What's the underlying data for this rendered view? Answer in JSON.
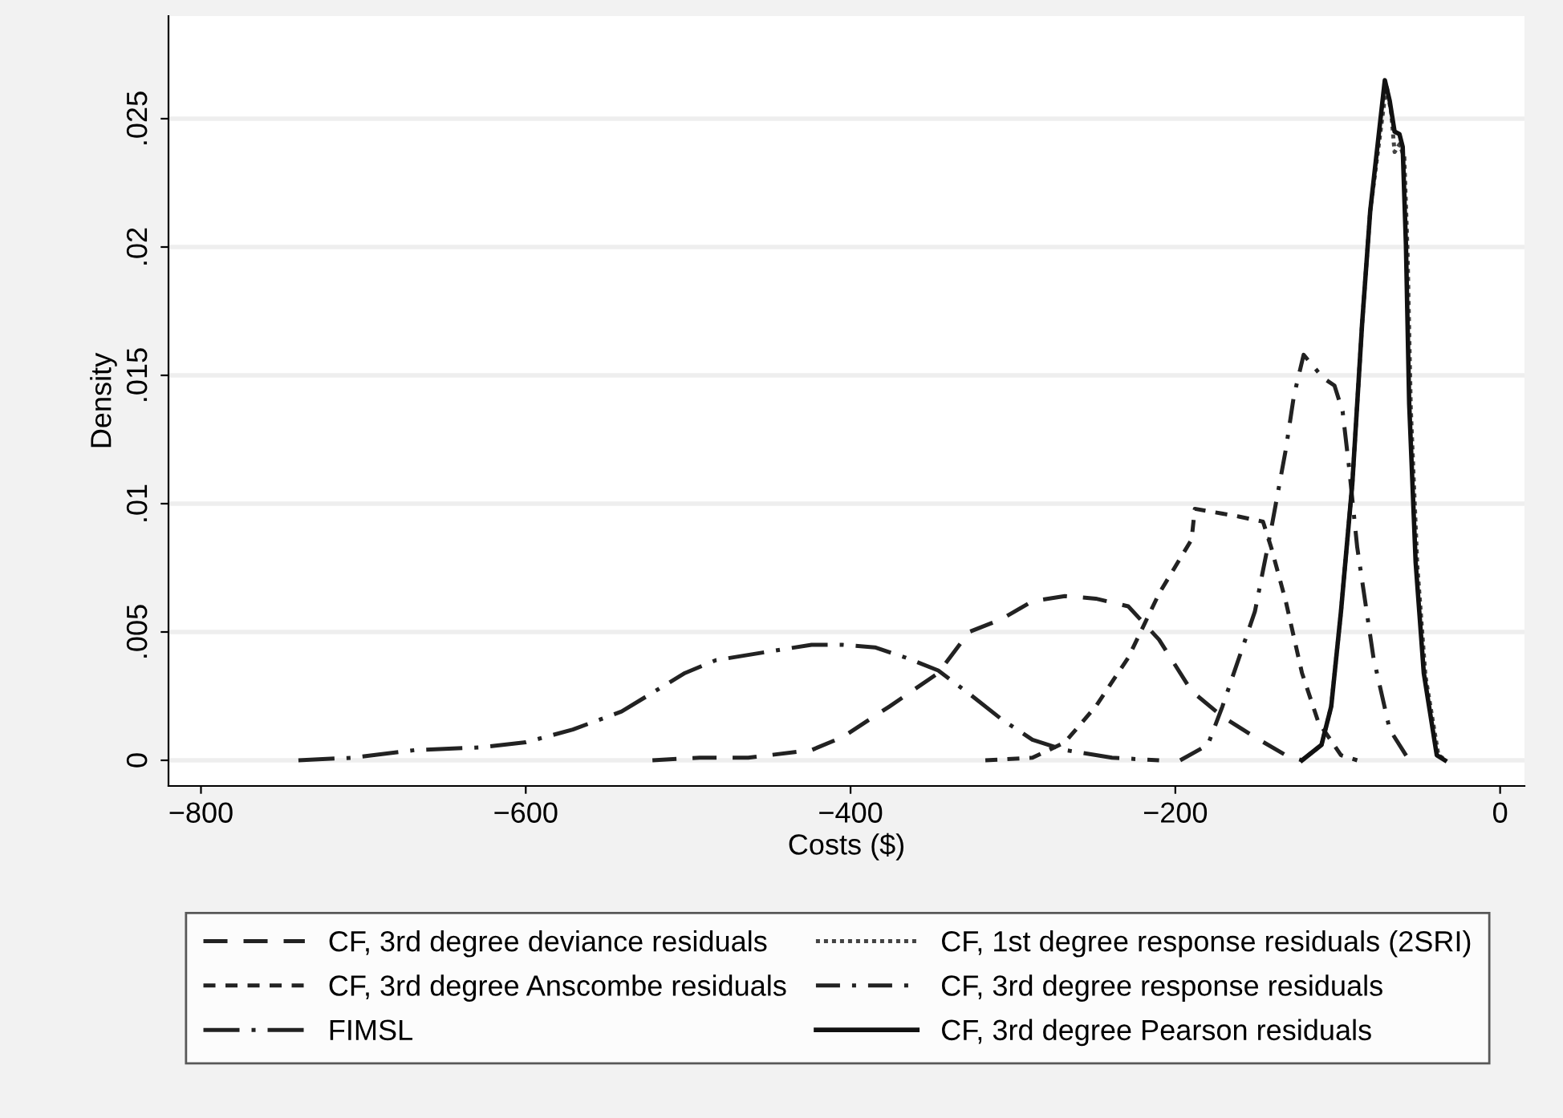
{
  "chart_data": {
    "type": "line",
    "xlabel": "Costs ($)",
    "ylabel": "Density",
    "xlim": [
      -820,
      15
    ],
    "ylim": [
      -0.001,
      0.029
    ],
    "xticks": [
      {
        "value": -800,
        "label": "−800"
      },
      {
        "value": -600,
        "label": "−600"
      },
      {
        "value": -400,
        "label": "−400"
      },
      {
        "value": -200,
        "label": "−200"
      },
      0
    ],
    "yticks": [
      0,
      {
        "value": 0.005,
        "label": ".005"
      },
      {
        "value": 0.01,
        "label": ".01"
      },
      {
        "value": 0.015,
        "label": ".015"
      },
      {
        "value": 0.02,
        "label": ".02"
      },
      {
        "value": 0.025,
        "label": ".025"
      }
    ],
    "grid": "y",
    "legend": "bottom",
    "marker": "none",
    "series": [
      {
        "name": "CF, 3rd degree deviance residuals",
        "color": "#222222",
        "line_style": "long dash",
        "x": [
          -522,
          -493,
          -463,
          -424,
          -405,
          -376,
          -346,
          -327,
          -307,
          -288,
          -268,
          -249,
          -229,
          -210,
          -190,
          -171,
          -151,
          -132,
          -122
        ],
        "values": [
          0,
          0.0001,
          0.0001,
          0.0004,
          0.0009,
          0.0021,
          0.0034,
          0.005,
          0.0055,
          0.0062,
          0.0064,
          0.0063,
          0.006,
          0.0047,
          0.0027,
          0.0017,
          0.0009,
          0.0002,
          0
        ]
      },
      {
        "name": "CF, 3rd degree Anscombe residuals",
        "color": "#222222",
        "line_style": "short dash",
        "x": [
          -317,
          -288,
          -268,
          -249,
          -229,
          -210,
          -190,
          -188,
          -161,
          -146,
          -141,
          -132,
          -122,
          -112,
          -98,
          -88
        ],
        "values": [
          0,
          0.0001,
          0.0007,
          0.0021,
          0.004,
          0.0065,
          0.0086,
          0.0098,
          0.0095,
          0.0093,
          0.0083,
          0.0062,
          0.0034,
          0.0015,
          0.0002,
          0
        ]
      },
      {
        "name": "FIMSL",
        "color": "#222222",
        "line_style": "long dash-dot",
        "x": [
          -740,
          -707,
          -668,
          -629,
          -600,
          -571,
          -541,
          -502,
          -483,
          -454,
          -424,
          -405,
          -385,
          -366,
          -346,
          -327,
          -307,
          -288,
          -268,
          -239,
          -210
        ],
        "values": [
          0,
          0.0001,
          0.0004,
          0.0005,
          0.0007,
          0.0012,
          0.0019,
          0.0034,
          0.0039,
          0.0042,
          0.0045,
          0.0045,
          0.0044,
          0.004,
          0.0035,
          0.0026,
          0.0016,
          0.0008,
          0.0004,
          0.0001,
          0
        ]
      },
      {
        "name": "CF, 1st degree response residuals (2SRI)",
        "color": "#444444",
        "line_style": "dotted",
        "x": [
          -122,
          -110,
          -104,
          -98,
          -91,
          -85,
          -80,
          -70,
          -67,
          -65,
          -62,
          -59,
          -57,
          -55,
          -51,
          -46,
          -38,
          -33
        ],
        "values": [
          0,
          0.0006,
          0.0021,
          0.0058,
          0.0108,
          0.017,
          0.0214,
          0.0263,
          0.0252,
          0.0237,
          0.024,
          0.0235,
          0.0198,
          0.0137,
          0.0076,
          0.0033,
          0.0002,
          0
        ]
      },
      {
        "name": "CF, 3rd degree response residuals",
        "color": "#222222",
        "line_style": "dash-dot",
        "x": [
          -197,
          -180,
          -171,
          -151,
          -141,
          -132,
          -127,
          -121,
          -109,
          -102,
          -97,
          -93,
          -88,
          -78,
          -68,
          -56
        ],
        "values": [
          0,
          0.0006,
          0.0021,
          0.0058,
          0.009,
          0.0121,
          0.0142,
          0.0158,
          0.0149,
          0.0146,
          0.0136,
          0.0114,
          0.0083,
          0.004,
          0.0012,
          0
        ]
      },
      {
        "name": "CF, 3rd degree Pearson residuals",
        "color": "#111111",
        "line_style": "solid",
        "x": [
          -122,
          -110,
          -104,
          -98,
          -91,
          -85,
          -80,
          -71,
          -68,
          -65,
          -62,
          -60,
          -58,
          -56,
          -52,
          -47,
          -39,
          -34
        ],
        "values": [
          0,
          0.0006,
          0.0021,
          0.0058,
          0.0108,
          0.017,
          0.0214,
          0.0265,
          0.0257,
          0.0245,
          0.0244,
          0.0239,
          0.0201,
          0.0139,
          0.0077,
          0.0034,
          0.0002,
          0
        ]
      }
    ]
  }
}
